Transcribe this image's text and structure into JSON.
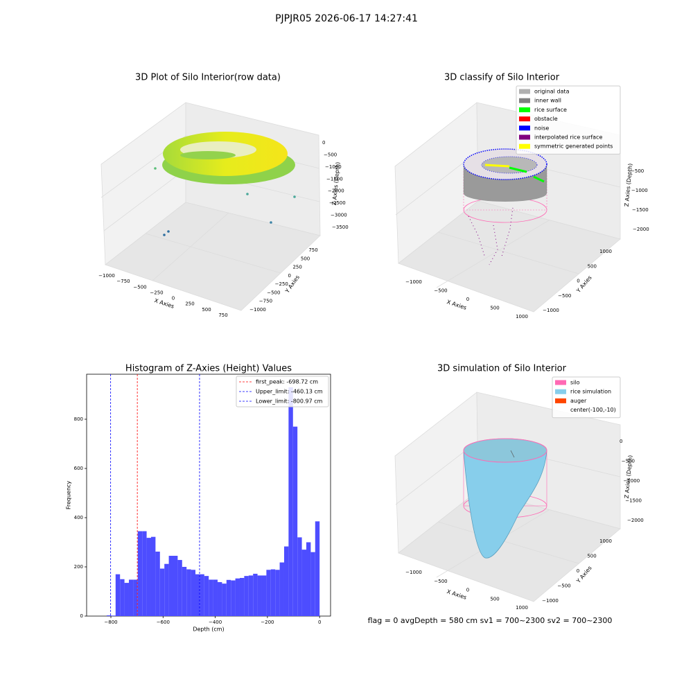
{
  "title": "PJPJR05 2026-06-17 14:27:41",
  "footer": "flag = 0     avgDepth = 580 cm  sv1 = 700~2300  sv2 = 700~2300",
  "chart_data": [
    {
      "type": "scatter3d",
      "title": "3D Plot of Silo Interior(row data)",
      "xlabel": "X Axies",
      "ylabel": "Y Axies",
      "zlabel": "Z Axies (Depth)",
      "xticks": [
        {
          "value": -1000,
          "label": "−1000"
        },
        {
          "value": -750,
          "label": "−750"
        },
        {
          "value": -500,
          "label": "−500"
        },
        {
          "value": -250,
          "label": "−250"
        },
        0,
        250,
        500,
        750
      ],
      "yticks": [
        {
          "value": -1000,
          "label": "−1000"
        },
        {
          "value": -750,
          "label": "−750"
        },
        {
          "value": -500,
          "label": "−500"
        },
        {
          "value": -250,
          "label": "−250"
        },
        0,
        250,
        500,
        750
      ],
      "zticks": [
        0,
        {
          "value": -500,
          "label": "−500"
        },
        {
          "value": -1000,
          "label": "−1000"
        },
        {
          "value": -1500,
          "label": "−1500"
        },
        {
          "value": -2000,
          "label": "−2000"
        },
        {
          "value": -2500,
          "label": "−2500"
        },
        {
          "value": -3000,
          "label": "−3000"
        },
        {
          "value": -3500,
          "label": "−3500"
        }
      ]
    },
    {
      "type": "scatter3d",
      "title": "3D classify of Silo Interior",
      "xlabel": "X Axies",
      "ylabel": "Y Axies",
      "zlabel": "Z Axies (Depth)",
      "xticks": [
        {
          "value": -1000,
          "label": "−1000"
        },
        {
          "value": -500,
          "label": "−500"
        },
        0,
        500,
        1000
      ],
      "yticks": [
        {
          "value": -1000,
          "label": "−1000"
        },
        {
          "value": -500,
          "label": "−500"
        },
        0,
        500,
        1000
      ],
      "zticks": [
        {
          "value": -500,
          "label": "−500"
        },
        {
          "value": -1000,
          "label": "−1000"
        },
        {
          "value": -1500,
          "label": "−1500"
        },
        {
          "value": -2000,
          "label": "−2000"
        }
      ],
      "legend": [
        {
          "name": "original data",
          "color": "#b0b0b0"
        },
        {
          "name": "inner wall",
          "color": "#808080"
        },
        {
          "name": "rice surface",
          "color": "#00ff00"
        },
        {
          "name": "obstacle",
          "color": "#ff0000"
        },
        {
          "name": "noise",
          "color": "#0000ff"
        },
        {
          "name": "interpolated rice surface",
          "color": "#800080"
        },
        {
          "name": "symmetric generated points",
          "color": "#ffff00"
        }
      ]
    },
    {
      "type": "histogram",
      "title": "Histogram of Z-Axies (Height) Values",
      "xlabel": "Depth (cm)",
      "ylabel": "Frequency",
      "color": "#4d4dff",
      "legend_corner": "upper right",
      "xlim": [
        -893,
        42
      ],
      "ylim": [
        0,
        983
      ],
      "xticks": [
        {
          "value": -800,
          "label": "−800"
        },
        {
          "value": -600,
          "label": "−600"
        },
        {
          "value": -400,
          "label": "−400"
        },
        {
          "value": -200,
          "label": "−200"
        },
        0
      ],
      "yticks": [
        0,
        200,
        400,
        600,
        800
      ],
      "bins": [
        -816,
        -799,
        -782,
        -765,
        -748,
        -731,
        -714,
        -697,
        -680,
        -663,
        -646,
        -629,
        -612,
        -595,
        -578,
        -561,
        -544,
        -527,
        -510,
        -493,
        -476,
        -459,
        -442,
        -425,
        -408,
        -391,
        -374,
        -357,
        -340,
        -323,
        -306,
        -289,
        -272,
        -255,
        -238,
        -221,
        -204,
        -187,
        -170,
        -153,
        -136,
        -119,
        -102,
        -85,
        -68,
        -51,
        -34,
        -17,
        0
      ],
      "counts": [
        3,
        2,
        170,
        150,
        135,
        148,
        148,
        345,
        345,
        318,
        322,
        262,
        193,
        212,
        245,
        245,
        228,
        200,
        190,
        188,
        170,
        170,
        163,
        148,
        148,
        138,
        132,
        147,
        145,
        153,
        155,
        163,
        165,
        172,
        165,
        165,
        188,
        190,
        188,
        218,
        283,
        930,
        770,
        320,
        270,
        300,
        260,
        385
      ],
      "vlines": [
        {
          "value": -698.72,
          "label": "first_peak: -698.72 cm",
          "color": "#ff0000"
        },
        {
          "value": -460.13,
          "label": "Upper_limit: -460.13 cm",
          "color": "#0000ff"
        },
        {
          "value": -800.97,
          "label": "Lower_limit: -800.97 cm",
          "color": "#0000ff"
        }
      ]
    },
    {
      "type": "surface3d",
      "title": "3D simulation of Silo Interior",
      "xlabel": "X Axies",
      "ylabel": "Y Axies",
      "zlabel": "Z Axies (Depth)",
      "xticks": [
        {
          "value": -1000,
          "label": "−1000"
        },
        {
          "value": -500,
          "label": "−500"
        },
        0,
        500,
        1000
      ],
      "yticks": [
        {
          "value": -1000,
          "label": "−1000"
        },
        {
          "value": -500,
          "label": "−500"
        },
        0,
        500,
        1000
      ],
      "zticks": [
        0,
        {
          "value": -500,
          "label": "−500"
        },
        {
          "value": -1000,
          "label": "−1000"
        },
        {
          "value": -1500,
          "label": "−1500"
        },
        {
          "value": -2000,
          "label": "−2000"
        }
      ],
      "legend": [
        {
          "name": "silo",
          "color": "#ff69b4"
        },
        {
          "name": "rice simulation",
          "color": "#87ceeb"
        },
        {
          "name": "auger",
          "color": "#ff4500"
        },
        {
          "name": "center(-100,-10)"
        }
      ]
    }
  ]
}
